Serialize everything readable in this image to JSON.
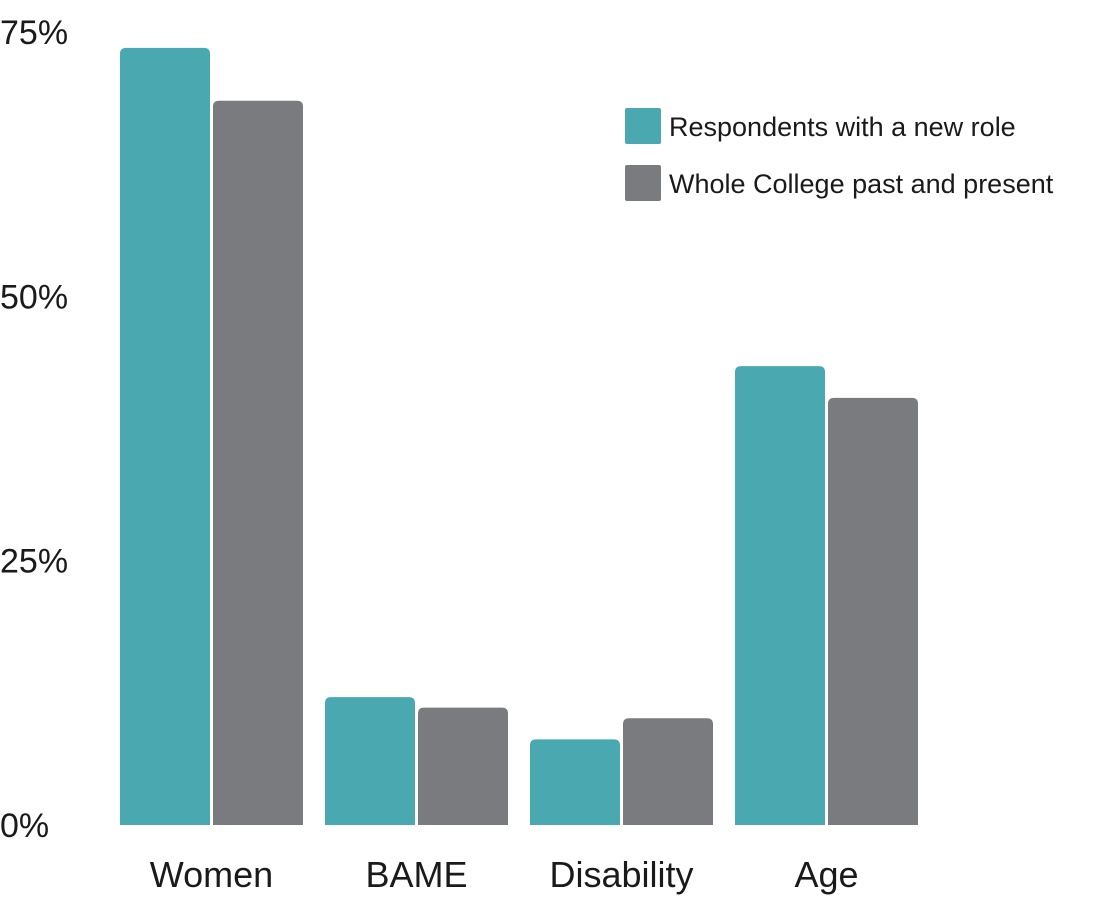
{
  "chart_data": {
    "type": "bar",
    "categories": [
      "Women",
      "BAME",
      "Disability",
      "Age"
    ],
    "series": [
      {
        "name": "Respondents with a new role",
        "color": "#4aa9b0",
        "values": [
          73.5,
          12.1,
          8.1,
          43.4
        ]
      },
      {
        "name": "Whole College past and present",
        "color": "#7a7b7f",
        "values": [
          68.5,
          11.1,
          10.1,
          40.4
        ]
      }
    ],
    "ylim": [
      0,
      75
    ],
    "yticks": [
      0,
      25,
      50,
      75
    ],
    "ytick_labels": [
      "0%",
      "25%",
      "50%",
      "75%"
    ],
    "title": "",
    "xlabel": "",
    "ylabel": "",
    "grid": false,
    "legend_position": "top-right"
  }
}
